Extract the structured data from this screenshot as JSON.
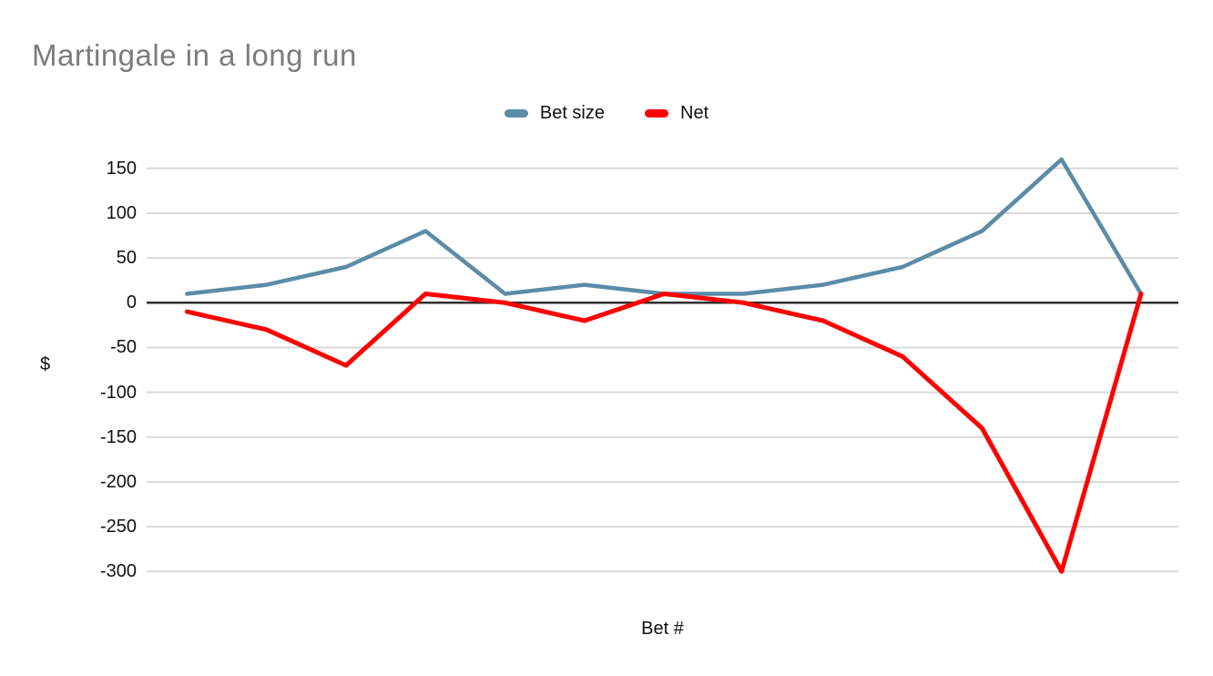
{
  "title": "Martingale in a long run",
  "legend": [
    {
      "label": "Bet size",
      "color": "#5B8CA7"
    },
    {
      "label": "Net",
      "color": "#FF0000"
    }
  ],
  "axes": {
    "x_title": "Bet #",
    "y_title": "$",
    "y_tick_labels": [
      "150",
      "100",
      "50",
      "0",
      "-50",
      "-100",
      "-150",
      "-200",
      "-250",
      "-300"
    ],
    "x_tick_labels": []
  },
  "colors": {
    "background": "#ffffff",
    "title_text": "#7c7c7c",
    "tick_text": "#111111",
    "gridline": "#d9d9d9",
    "zero_line": "#2e2e2e",
    "bet_size_series": "#5B8CA7",
    "net_series": "#FF0000"
  },
  "chart_data": {
    "type": "line",
    "title": "Martingale in a long run",
    "xlabel": "Bet #",
    "ylabel": "$",
    "x": [
      1,
      2,
      3,
      4,
      5,
      6,
      7,
      8,
      9,
      10,
      11,
      12,
      13
    ],
    "series": [
      {
        "name": "Bet size",
        "color": "#5B8CA7",
        "stroke_width": 4.5,
        "values": [
          10,
          20,
          40,
          80,
          10,
          20,
          10,
          10,
          20,
          40,
          80,
          160,
          10
        ]
      },
      {
        "name": "Net",
        "color": "#FF0000",
        "stroke_width": 5,
        "values": [
          -10,
          -30,
          -70,
          10,
          0,
          -20,
          10,
          0,
          -20,
          -60,
          -140,
          -300,
          10
        ]
      }
    ],
    "y_ticks": [
      150,
      100,
      50,
      0,
      -50,
      -100,
      -150,
      -200,
      -250,
      -300
    ],
    "ylim": [
      -325,
      175
    ],
    "grid": true,
    "zero_axis_emphasized": true,
    "legend_position": "top-center",
    "x_tick_labels_visible": false
  }
}
